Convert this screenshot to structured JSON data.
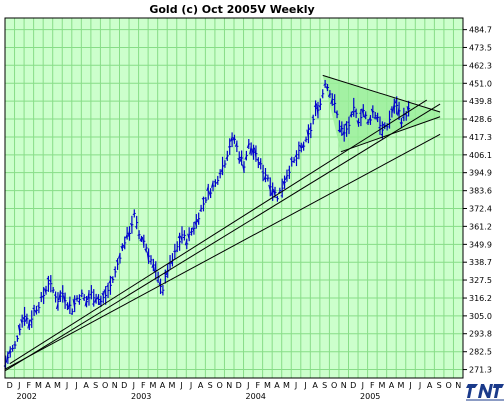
{
  "chart_data": {
    "type": "bar",
    "subtype": "ohlc-weekly",
    "title": "Gold (c) Oct 2005V Weekly",
    "y_ticks": [
      "484.7",
      "473.5",
      "462.3",
      "451.0",
      "439.8",
      "428.6",
      "417.3",
      "406.1",
      "394.9",
      "383.6",
      "372.4",
      "361.2",
      "349.9",
      "338.7",
      "327.5",
      "316.2",
      "305.0",
      "293.8",
      "282.5",
      "271.3"
    ],
    "ylim": [
      266.0,
      492.0
    ],
    "x_month_labels": [
      "D",
      "J",
      "F",
      "M",
      "A",
      "M",
      "J",
      "J",
      "A",
      "S",
      "O",
      "N",
      "D",
      "J",
      "F",
      "M",
      "A",
      "M",
      "J",
      "J",
      "A",
      "S",
      "O",
      "N",
      "D",
      "J",
      "F",
      "M",
      "A",
      "M",
      "J",
      "J",
      "A",
      "S",
      "O",
      "N",
      "D",
      "J",
      "F",
      "M",
      "A",
      "M",
      "J",
      "J",
      "A",
      "S",
      "O",
      "N"
    ],
    "x_year_labels": [
      "2002",
      "2003",
      "2004",
      "2005"
    ],
    "year_label_month_index": [
      1,
      13,
      25,
      37
    ],
    "grid": true,
    "background": "#ccffcc",
    "grid_color": "#88dd88",
    "bar_color": "#0000cc",
    "channel_fill": "#99ee99",
    "price_points": [
      [
        0,
        276
      ],
      [
        0.5,
        282
      ],
      [
        1,
        286
      ],
      [
        1.5,
        298
      ],
      [
        2,
        306
      ],
      [
        2.5,
        300
      ],
      [
        3,
        308
      ],
      [
        3.5,
        312
      ],
      [
        4,
        318
      ],
      [
        4.5,
        326
      ],
      [
        5,
        321
      ],
      [
        5.5,
        315
      ],
      [
        6,
        319
      ],
      [
        6.5,
        313
      ],
      [
        7,
        309
      ],
      [
        7.5,
        316
      ],
      [
        8,
        318
      ],
      [
        8.5,
        314
      ],
      [
        9,
        319
      ],
      [
        9.5,
        317
      ],
      [
        10,
        314
      ],
      [
        10.5,
        318
      ],
      [
        11,
        324
      ],
      [
        11.5,
        332
      ],
      [
        12,
        343
      ],
      [
        12.5,
        352
      ],
      [
        13,
        358
      ],
      [
        13.5,
        368
      ],
      [
        14,
        356
      ],
      [
        14.5,
        352
      ],
      [
        15,
        344
      ],
      [
        15.5,
        336
      ],
      [
        16,
        328
      ],
      [
        16.5,
        322
      ],
      [
        17,
        334
      ],
      [
        17.5,
        340
      ],
      [
        18,
        348
      ],
      [
        18.5,
        356
      ],
      [
        19,
        352
      ],
      [
        19.5,
        358
      ],
      [
        20,
        364
      ],
      [
        20.5,
        372
      ],
      [
        21,
        379
      ],
      [
        21.5,
        384
      ],
      [
        22,
        388
      ],
      [
        22.5,
        396
      ],
      [
        23,
        402
      ],
      [
        23.5,
        412
      ],
      [
        24,
        416
      ],
      [
        24.5,
        406
      ],
      [
        25,
        400
      ],
      [
        25.5,
        412
      ],
      [
        26,
        408
      ],
      [
        26.5,
        402
      ],
      [
        27,
        396
      ],
      [
        27.5,
        392
      ],
      [
        28,
        384
      ],
      [
        28.5,
        380
      ],
      [
        29,
        386
      ],
      [
        29.5,
        394
      ],
      [
        30,
        400
      ],
      [
        30.5,
        404
      ],
      [
        31,
        410
      ],
      [
        31.5,
        414
      ],
      [
        32,
        422
      ],
      [
        32.5,
        434
      ],
      [
        33,
        438
      ],
      [
        33.5,
        452
      ],
      [
        34,
        446
      ],
      [
        34.5,
        437
      ],
      [
        35,
        425
      ],
      [
        35.5,
        419
      ],
      [
        36,
        425
      ],
      [
        36.5,
        434
      ],
      [
        37,
        428
      ],
      [
        37.5,
        434
      ],
      [
        38,
        426
      ],
      [
        38.5,
        433
      ],
      [
        39,
        430
      ],
      [
        39.5,
        421
      ],
      [
        40,
        424
      ],
      [
        40.5,
        433
      ],
      [
        41,
        438
      ],
      [
        41.5,
        428
      ],
      [
        42,
        432
      ],
      [
        42.5,
        436
      ]
    ],
    "trendlines": [
      {
        "from": [
          0,
          270.5
        ],
        "to": [
          45.6,
          438.0
        ]
      },
      {
        "from": [
          0.5,
          275.0
        ],
        "to": [
          44.2,
          440.5
        ]
      },
      {
        "from": [
          0,
          271.5
        ],
        "to": [
          45.6,
          419.0
        ]
      },
      {
        "from": [
          33.3,
          456.0
        ],
        "to": [
          45.6,
          433.0
        ]
      },
      {
        "from": [
          35.2,
          408.0
        ],
        "to": [
          45.6,
          430.0
        ]
      }
    ]
  }
}
